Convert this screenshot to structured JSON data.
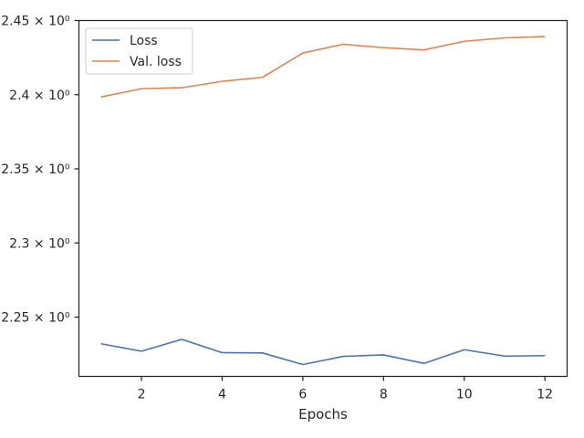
{
  "chart_data": {
    "type": "line",
    "title": "",
    "xlabel": "Epochs",
    "ylabel": "",
    "xlim": [
      0.45,
      12.55
    ],
    "ylim": [
      2.21,
      2.45
    ],
    "xticks": [
      2,
      4,
      6,
      8,
      10,
      12
    ],
    "yticks": [
      {
        "value": 2.25,
        "label": "2.25 × 10⁰"
      },
      {
        "value": 2.3,
        "label": "2.3 × 10⁰"
      },
      {
        "value": 2.35,
        "label": "2.35 × 10⁰"
      },
      {
        "value": 2.4,
        "label": "2.4 × 10⁰"
      },
      {
        "value": 2.45,
        "label": "2.45 × 10⁰"
      }
    ],
    "x": [
      1,
      2,
      3,
      4,
      5,
      6,
      7,
      8,
      9,
      10,
      11,
      12
    ],
    "series": [
      {
        "name": "Loss",
        "color": "#4c72b0",
        "values": [
          2.232,
          2.227,
          2.235,
          2.226,
          2.2258,
          2.218,
          2.2235,
          2.2245,
          2.2188,
          2.228,
          2.2237,
          2.224
        ]
      },
      {
        "name": "Val. loss",
        "color": "#dd8452",
        "values": [
          2.3985,
          2.404,
          2.4047,
          2.409,
          2.4117,
          2.4281,
          2.434,
          2.4317,
          2.4302,
          2.436,
          2.4383,
          2.4392
        ]
      }
    ],
    "grid": false,
    "legend": "top-left"
  }
}
